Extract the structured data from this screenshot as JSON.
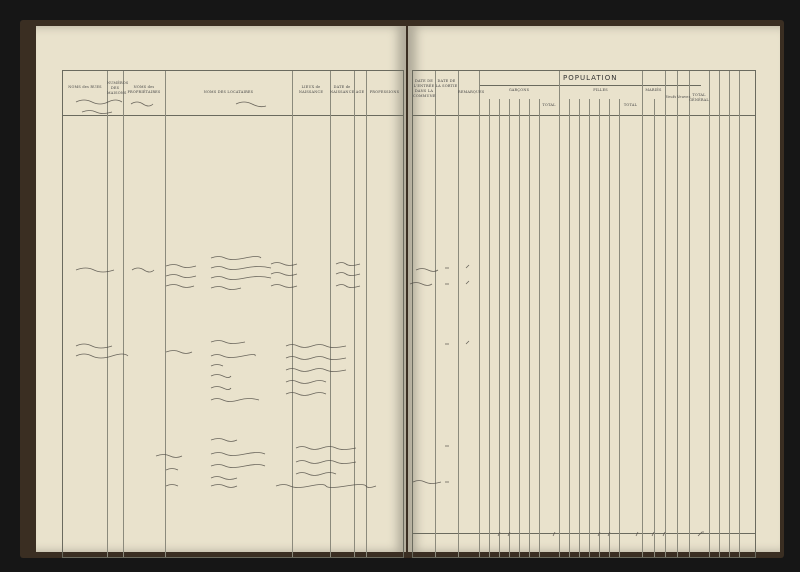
{
  "document": {
    "left_page": {
      "headers": [
        "NOMS des RUES",
        "NUMÉROS DES MAISONS",
        "NOMS des PROPRIÉTAIRES",
        "NOMS DES LOCATAIRES",
        "LIEUX de NAISSANCE",
        "DATE de NAISSANCE",
        "AGE",
        "PROFESSIONS"
      ]
    },
    "right_page": {
      "headers": [
        "DATE DE L'ENTRÉE DANS LA COMMUNE",
        "DATE DE LA SORTIE",
        "REMARQUES"
      ],
      "population_title": "POPULATION",
      "groups": [
        "GARÇONS",
        "FILLES",
        "MARIÉS"
      ],
      "total_label": "TOTAL",
      "extra": [
        "Veufs",
        "Veuves",
        "TOTAL GÉNÉRAL"
      ]
    }
  },
  "colors": {
    "paper": "#e9e2cc",
    "ink": "#3b3a36",
    "background": "#161616"
  }
}
